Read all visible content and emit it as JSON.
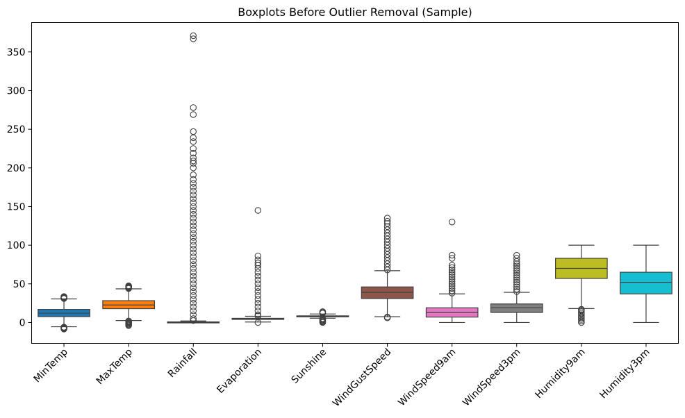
{
  "chart_data": {
    "type": "box",
    "title": "Boxplots Before Outlier Removal (Sample)",
    "xlabel": "",
    "ylabel": "",
    "ylim": [
      -27,
      388
    ],
    "yticks": [
      0,
      50,
      100,
      150,
      200,
      250,
      300,
      350
    ],
    "grid": false,
    "categories": [
      "MinTemp",
      "MaxTemp",
      "Rainfall",
      "Evaporation",
      "Sunshine",
      "WindGustSpeed",
      "WindSpeed9am",
      "WindSpeed3pm",
      "Humidity9am",
      "Humidity3pm"
    ],
    "colors": [
      "#1f77b4",
      "#ff7f0e",
      "#2ca02c",
      "#d62728",
      "#9467bd",
      "#8c564b",
      "#e377c2",
      "#7f7f7f",
      "#bcbd22",
      "#17becf"
    ],
    "boxes": [
      {
        "name": "MinTemp",
        "whislo": -5.5,
        "q1": 7.6,
        "med": 12.0,
        "q3": 16.9,
        "whishi": 30.5,
        "fliers": [
          -6,
          -6.5,
          -7,
          -7.5,
          -8,
          -8.5,
          31,
          31.5,
          32,
          32.5,
          33,
          33.5
        ]
      },
      {
        "name": "MaxTemp",
        "whislo": 2.5,
        "q1": 17.9,
        "med": 22.6,
        "q3": 28.2,
        "whishi": 43.5,
        "fliers": [
          -4,
          -3,
          -2,
          -1,
          0,
          1,
          2,
          44,
          44.5,
          45,
          45.5,
          46,
          46.5,
          47,
          47.5
        ]
      },
      {
        "name": "Rainfall",
        "whislo": 0,
        "q1": 0,
        "med": 0,
        "q3": 0.8,
        "whishi": 2.0,
        "fliers": [
          2.5,
          5,
          10,
          15,
          20,
          25,
          30,
          35,
          40,
          45,
          50,
          55,
          60,
          65,
          70,
          75,
          80,
          85,
          90,
          95,
          100,
          105,
          110,
          115,
          120,
          125,
          130,
          135,
          140,
          145,
          150,
          155,
          160,
          165,
          170,
          175,
          180,
          185,
          191,
          200,
          206,
          209,
          213,
          219,
          225,
          234,
          239,
          247,
          269,
          278,
          367,
          371
        ]
      },
      {
        "name": "Evaporation",
        "whislo": 0.6,
        "q1": 4.0,
        "med": 4.8,
        "q3": 5.4,
        "whishi": 8.0,
        "fliers": [
          0,
          8.5,
          10,
          15,
          20,
          25,
          30,
          35,
          40,
          45,
          50,
          55,
          60,
          65,
          70,
          74,
          77,
          81,
          86,
          145
        ]
      },
      {
        "name": "Sunshine",
        "whislo": 5.5,
        "q1": 7.6,
        "med": 8.4,
        "q3": 8.6,
        "whishi": 11,
        "fliers": [
          0,
          1,
          2,
          3,
          4,
          5,
          12,
          13,
          14
        ]
      },
      {
        "name": "WindGustSpeed",
        "whislo": 7.5,
        "q1": 31,
        "med": 39,
        "q3": 46,
        "whishi": 67,
        "fliers": [
          6,
          7,
          68,
          72,
          76,
          80,
          84,
          88,
          92,
          96,
          100,
          104,
          108,
          112,
          116,
          120,
          124,
          128,
          131,
          135
        ]
      },
      {
        "name": "WindSpeed9am",
        "whislo": 0,
        "q1": 7,
        "med": 13,
        "q3": 19,
        "whishi": 37,
        "fliers": [
          38,
          41,
          44,
          47,
          50,
          53,
          56,
          59,
          62,
          65,
          68,
          71,
          74,
          83,
          87,
          130
        ]
      },
      {
        "name": "WindSpeed3pm",
        "whislo": 0,
        "q1": 13,
        "med": 19,
        "q3": 24,
        "whishi": 39,
        "fliers": [
          40,
          43,
          46,
          49,
          52,
          55,
          58,
          61,
          64,
          67,
          70,
          73,
          76,
          79,
          83,
          87
        ]
      },
      {
        "name": "Humidity9am",
        "whislo": 18,
        "q1": 57,
        "med": 70,
        "q3": 83,
        "whishi": 100,
        "fliers": [
          0,
          2,
          4,
          6,
          8,
          10,
          12,
          14,
          16,
          17
        ]
      },
      {
        "name": "Humidity3pm",
        "whislo": 0,
        "q1": 37,
        "med": 52,
        "q3": 65,
        "whishi": 100,
        "fliers": []
      }
    ]
  }
}
